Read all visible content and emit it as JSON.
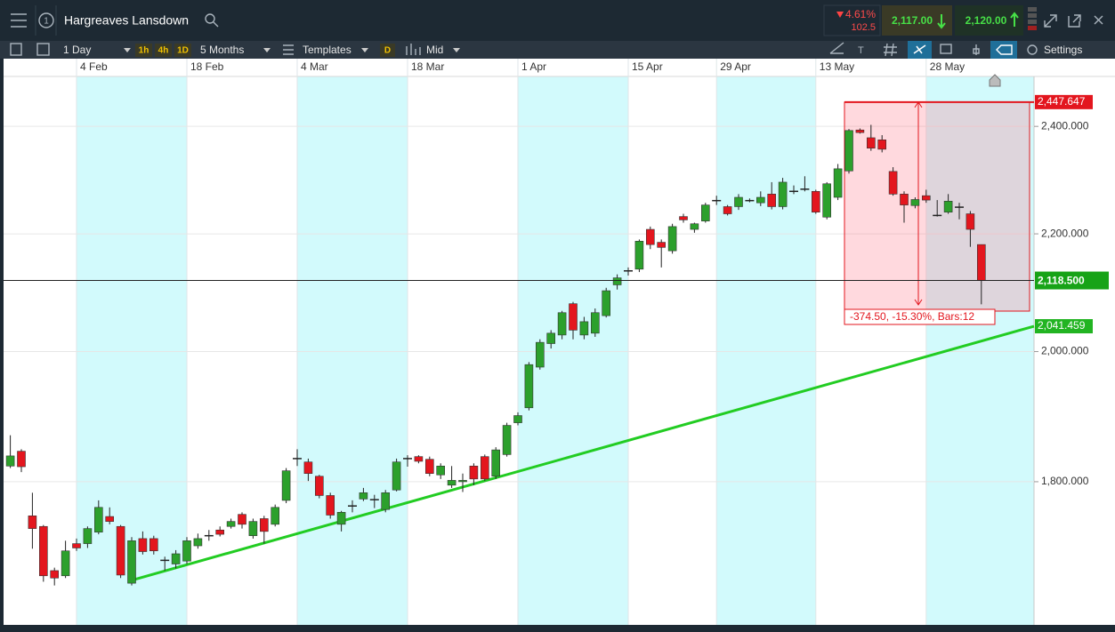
{
  "header": {
    "tab": "1",
    "title": "Hargreaves Lansdown",
    "change_pct": "4.61%",
    "change_abs": "102.5",
    "sell": "2,117.00",
    "buy": "2,120.00"
  },
  "toolbar": {
    "interval": "1 Day",
    "quick": [
      "1h",
      "4h",
      "1D"
    ],
    "range": "5 Months",
    "templates": "Templates",
    "d": "D",
    "price_type": "Mid",
    "settings": "Settings"
  },
  "chart_data": {
    "type": "candlestick",
    "categories": [
      null,
      null,
      null,
      null,
      null,
      null,
      "4 Feb",
      null,
      null,
      null,
      null,
      null,
      null,
      null,
      null,
      null,
      "18 Feb",
      null,
      null,
      null,
      null,
      null,
      null,
      null,
      null,
      null,
      "4 Mar",
      null,
      null,
      null,
      null,
      null,
      null,
      null,
      null,
      null,
      "18 Mar",
      null,
      null,
      null,
      null,
      null,
      null,
      null,
      null,
      null,
      "1 Apr",
      null,
      null,
      null,
      null,
      null,
      null,
      null,
      null,
      null,
      "15 Apr",
      null,
      null,
      null,
      null,
      null,
      null,
      null,
      "29 Apr",
      null,
      null,
      null,
      null,
      null,
      null,
      null,
      null,
      "13 May",
      null,
      null,
      null,
      null,
      null,
      null,
      null,
      null,
      null,
      "28 May",
      null,
      null,
      null,
      null,
      null
    ],
    "open": [
      1823,
      1845,
      1751,
      1736,
      1675,
      1668,
      1712,
      1712,
      1728,
      1750,
      1736,
      1658,
      1719,
      1719,
      1688,
      1684,
      1688,
      1709,
      1722,
      1731,
      1736,
      1753,
      1723,
      1747,
      1739,
      1773,
      1833,
      1829,
      1808,
      1780,
      1739,
      1764,
      1775,
      1773,
      1760,
      1788,
      1833,
      1837,
      1833,
      1810,
      1795,
      1800,
      1823,
      1837,
      1808,
      1840,
      1888,
      1911,
      1975,
      2013,
      2027,
      2079,
      2027,
      2030,
      2059,
      2111,
      2134,
      2138,
      2208,
      2185,
      2170,
      2231,
      2208,
      2223,
      2259,
      2249,
      2249,
      2259,
      2256,
      2272,
      2249,
      2277,
      2280,
      2277,
      2230,
      2266,
      2315,
      2393,
      2378,
      2374,
      2314,
      2272,
      2251,
      2269,
      2233,
      2239,
      2248,
      2236,
      2181
    ],
    "high": [
      1869,
      1848,
      1784,
      1738,
      1679,
      1716,
      1719,
      1736,
      1773,
      1763,
      1738,
      1721,
      1729,
      1723,
      1694,
      1703,
      1721,
      1726,
      1731,
      1736,
      1747,
      1756,
      1747,
      1751,
      1767,
      1820,
      1848,
      1834,
      1810,
      1784,
      1758,
      1773,
      1791,
      1781,
      1788,
      1834,
      1839,
      1839,
      1837,
      1827,
      1823,
      1812,
      1827,
      1840,
      1851,
      1888,
      1904,
      1983,
      2020,
      2035,
      2067,
      2082,
      2057,
      2071,
      2106,
      2129,
      2141,
      2190,
      2213,
      2190,
      2218,
      2236,
      2220,
      2256,
      2269,
      2252,
      2272,
      2264,
      2277,
      2294,
      2302,
      2288,
      2305,
      2280,
      2294,
      2328,
      2395,
      2396,
      2403,
      2383,
      2322,
      2277,
      2266,
      2280,
      2261,
      2272,
      2256,
      2241,
      2181
    ],
    "low": [
      1820,
      1814,
      1705,
      1660,
      1655,
      1665,
      1702,
      1706,
      1725,
      1739,
      1665,
      1655,
      1697,
      1697,
      1675,
      1678,
      1684,
      1705,
      1716,
      1722,
      1733,
      1733,
      1719,
      1712,
      1736,
      1769,
      1823,
      1801,
      1776,
      1747,
      1729,
      1756,
      1772,
      1762,
      1756,
      1786,
      1822,
      1827,
      1808,
      1804,
      1791,
      1785,
      1795,
      1801,
      1804,
      1837,
      1884,
      1907,
      1971,
      2005,
      2020,
      2020,
      2020,
      2024,
      2056,
      2103,
      2127,
      2133,
      2173,
      2141,
      2165,
      2220,
      2202,
      2220,
      2252,
      2233,
      2243,
      2257,
      2250,
      2244,
      2244,
      2272,
      2277,
      2236,
      2226,
      2261,
      2310,
      2386,
      2353,
      2350,
      2269,
      2220,
      2246,
      2256,
      2231,
      2236,
      2226,
      2177,
      2078
    ],
    "close": [
      1838,
      1822,
      1733,
      1668,
      1665,
      1702,
      1706,
      1733,
      1763,
      1743,
      1669,
      1716,
      1701,
      1702,
      1689,
      1698,
      1716,
      1719,
      1723,
      1725,
      1743,
      1739,
      1743,
      1729,
      1763,
      1816,
      1834,
      1812,
      1780,
      1752,
      1756,
      1765,
      1784,
      1774,
      1784,
      1829,
      1834,
      1830,
      1812,
      1823,
      1802,
      1802,
      1804,
      1804,
      1847,
      1884,
      1899,
      1979,
      2015,
      2030,
      2064,
      2035,
      2049,
      2064,
      2101,
      2123,
      2135,
      2187,
      2181,
      2176,
      2213,
      2225,
      2218,
      2252,
      2260,
      2236,
      2266,
      2260,
      2266,
      2249,
      2294,
      2277,
      2281,
      2239,
      2291,
      2319,
      2392,
      2388,
      2358,
      2356,
      2272,
      2252,
      2262,
      2261,
      2233,
      2259,
      2247,
      2208,
      2118.5
    ],
    "up_color": "#2ca02c",
    "down_color": "#e3161e",
    "ylim": [
      1603,
      2499
    ],
    "log_scale": true,
    "yticks": [
      {
        "value": 1800,
        "label": "1,800.000"
      },
      {
        "value": 2000,
        "label": "2,000.000"
      },
      {
        "value": 2200,
        "label": "2,200.000"
      },
      {
        "value": 2400,
        "label": "2,400.000"
      }
    ],
    "last_price": {
      "value": 2118.5,
      "label": "2,118.500"
    },
    "trendline": {
      "start": 1662,
      "end": {
        "value": 2041.459,
        "label": "2,041.459"
      },
      "color": "#22cc22"
    },
    "measure": {
      "top": {
        "value": 2447.647,
        "label": "2,447.647"
      },
      "text": "-374.50, -15.30%, Bars:12"
    }
  }
}
